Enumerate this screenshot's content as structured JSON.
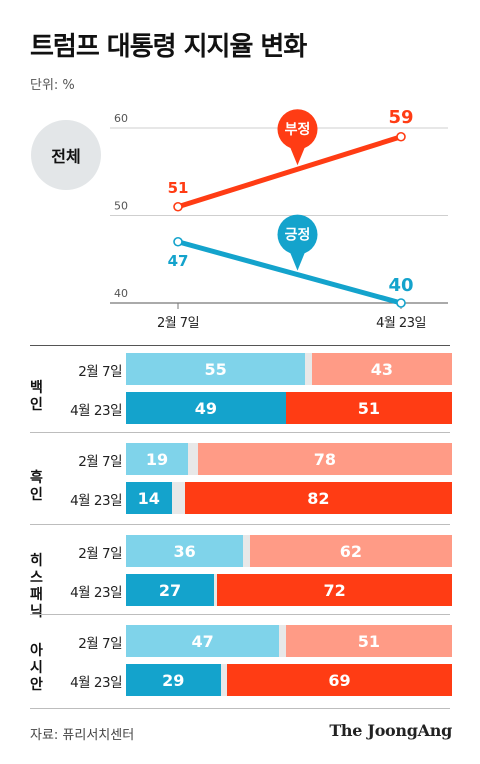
{
  "title": "트럼프 대통령 지지율 변화",
  "unit_label": "단위: %",
  "overall_label": "전체",
  "source": "자료: 퓨리서치센터",
  "brand": "The JoongAng",
  "colors": {
    "approve": "#14a3cc",
    "disapprove": "#ff3c14",
    "approve_light": "#7fd3ea",
    "disapprove_light": "#ff9b86",
    "badge_bg": "#e3e6e8"
  },
  "chart_data": [
    {
      "type": "line",
      "title": "전체",
      "x": [
        "2월 7일",
        "4월 23일"
      ],
      "ylim": [
        40,
        60
      ],
      "yticks": [
        40,
        50,
        60
      ],
      "grid": true,
      "series": [
        {
          "name": "부정",
          "values": [
            51,
            59
          ],
          "color": "#ff3c14",
          "callout_icon": "map-pin-callout"
        },
        {
          "name": "긍정",
          "values": [
            47,
            40
          ],
          "color": "#14a3cc",
          "callout_icon": "map-pin-callout"
        }
      ]
    },
    {
      "type": "bar",
      "stacked": true,
      "orientation": "horizontal",
      "series_order": [
        "긍정",
        "부정"
      ],
      "groups": [
        {
          "label": "백인",
          "rows": [
            {
              "date": "2월 7일",
              "approve": 55,
              "disapprove": 43
            },
            {
              "date": "4월 23일",
              "approve": 49,
              "disapprove": 51
            }
          ]
        },
        {
          "label": "흑인",
          "rows": [
            {
              "date": "2월 7일",
              "approve": 19,
              "disapprove": 78
            },
            {
              "date": "4월 23일",
              "approve": 14,
              "disapprove": 82
            }
          ]
        },
        {
          "label": "히스패닉",
          "rows": [
            {
              "date": "2월 7일",
              "approve": 36,
              "disapprove": 62
            },
            {
              "date": "4월 23일",
              "approve": 27,
              "disapprove": 72
            }
          ]
        },
        {
          "label": "아시안",
          "rows": [
            {
              "date": "2월 7일",
              "approve": 47,
              "disapprove": 51
            },
            {
              "date": "4월 23일",
              "approve": 29,
              "disapprove": 69
            }
          ]
        }
      ]
    }
  ]
}
